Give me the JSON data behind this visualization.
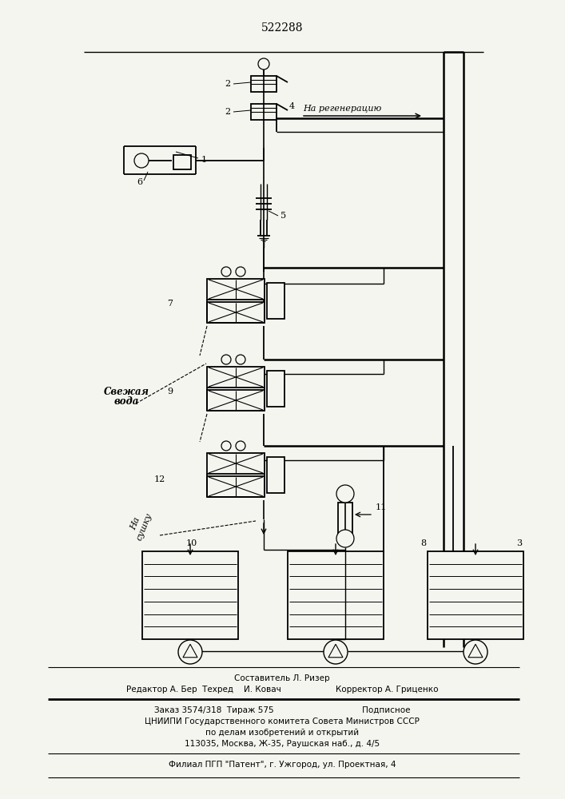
{
  "patent_number": "522288",
  "bg_color": "#f5f5f0",
  "line_color": "#000000",
  "footer_texts": {
    "composer": "Составитель Л. Ризер",
    "editor_line": "Редактор А. Бер  Техред    И. Ковач                     Корректор А. Гриценко",
    "order_line": "Заказ 3574/318  Тираж 575                                  Подписное",
    "org1": "ЦНИИПИ Государственного комитета Совета Министров СССР",
    "org2": "по делам изобретений и открытий",
    "org3": "113035, Москва, Ж-35, Раушская наб., д. 4/5",
    "branch": "Филиал ПГП \"Патент\", г. Ужгород, ул. Проектная, 4"
  }
}
